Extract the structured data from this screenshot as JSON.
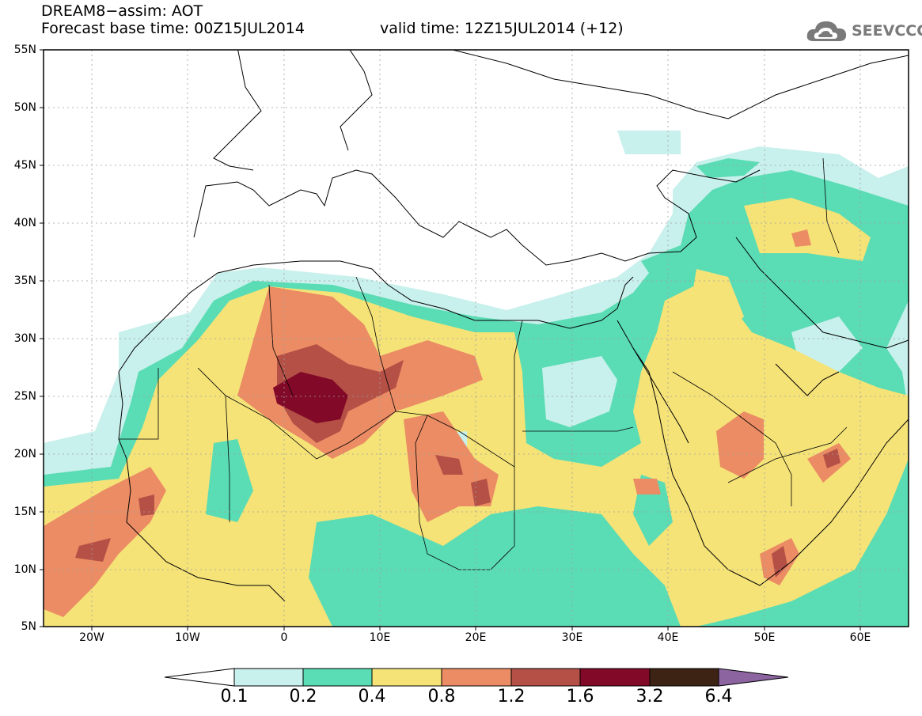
{
  "header": {
    "title_line1": "DREAM8−assim: AOT",
    "title_line2": "Forecast base time: 00Z15JUL2014",
    "valid_time": "valid time: 12Z15JUL2014 (+12)",
    "logo_text": "SEEVCCC",
    "logo_icon": "cloud-icon"
  },
  "map": {
    "variable": "AOT",
    "model": "DREAM8-assim",
    "lat_labels": [
      "55N",
      "50N",
      "45N",
      "40N",
      "35N",
      "30N",
      "25N",
      "20N",
      "15N",
      "10N",
      "5N"
    ],
    "lon_labels": [
      "20W",
      "10W",
      "0",
      "10E",
      "20E",
      "30E",
      "40E",
      "50E",
      "60E"
    ],
    "lon_range": [
      -25,
      65
    ],
    "lat_range": [
      5,
      55
    ],
    "grid": true
  },
  "colorbar": {
    "levels": [
      "0.1",
      "0.2",
      "0.4",
      "0.8",
      "1.2",
      "1.6",
      "3.2",
      "6.4"
    ],
    "colors": [
      "#ffffff",
      "#c8f0ec",
      "#5adcb4",
      "#f5e378",
      "#eb8c64",
      "#b45046",
      "#820a28",
      "#3c2314",
      "#8c64a0"
    ]
  }
}
